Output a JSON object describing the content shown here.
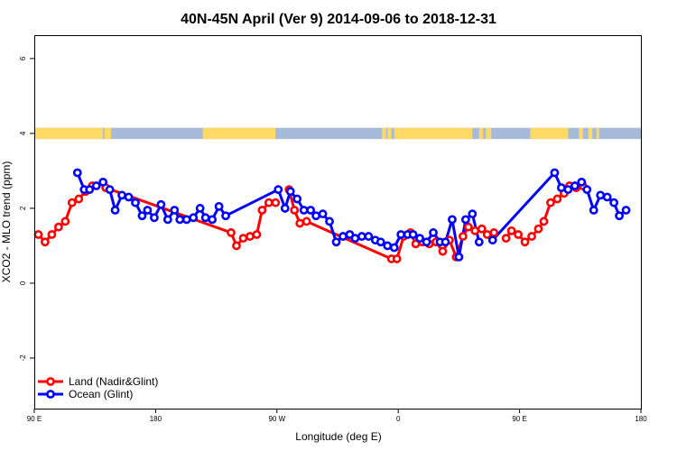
{
  "chart_data": {
    "type": "line",
    "title": "40N-45N April (Ver 9)   2014-09-06 to 2018-12-31",
    "xlabel": "Longitude (deg E)",
    "ylabel": "XCO2 - MLO trend (ppm)",
    "xlim": [
      90,
      540
    ],
    "ylim": [
      -3.35,
      6.6
    ],
    "x_ticks": [
      {
        "value": 90,
        "label": "90 E"
      },
      {
        "value": 180,
        "label": "180"
      },
      {
        "value": 270,
        "label": "90 W"
      },
      {
        "value": 360,
        "label": "0"
      },
      {
        "value": 450,
        "label": "90 E"
      },
      {
        "value": 540,
        "label": "180"
      }
    ],
    "y_ticks": [
      {
        "value": -2,
        "label": "-2"
      },
      {
        "value": 0,
        "label": "0"
      },
      {
        "value": 2,
        "label": "2"
      },
      {
        "value": 4,
        "label": "4"
      },
      {
        "value": 6,
        "label": "6"
      }
    ],
    "grid": false,
    "legend_position": "bottom-left",
    "land_ocean_strip": {
      "y_range": [
        3.85,
        4.15
      ],
      "land_color": "#ffd966",
      "ocean_color": "#a5bbd9",
      "land_segments": [
        [
          90,
          141
        ],
        [
          142,
          145
        ],
        [
          144,
          147
        ],
        [
          215,
          269
        ],
        [
          348,
          351
        ],
        [
          352,
          355
        ],
        [
          357,
          415
        ],
        [
          420,
          423
        ],
        [
          425,
          429
        ],
        [
          458,
          486
        ],
        [
          494,
          497
        ],
        [
          501,
          504
        ],
        [
          507,
          509
        ]
      ]
    },
    "series": [
      {
        "name": "Land (Nadir&Glint)",
        "color": "#ff0000",
        "points": [
          [
            93,
            1.3
          ],
          [
            98,
            1.1
          ],
          [
            103,
            1.3
          ],
          [
            108,
            1.5
          ],
          [
            113,
            1.65
          ],
          [
            118,
            2.15
          ],
          [
            123,
            2.25
          ],
          [
            128,
            2.45
          ],
          [
            133,
            2.6
          ],
          [
            138,
            null
          ],
          [
            143,
            2.55
          ],
          [
            236,
            1.35
          ],
          [
            240,
            1.0
          ],
          [
            245,
            1.2
          ],
          [
            250,
            1.25
          ],
          [
            255,
            1.3
          ],
          [
            259,
            1.95
          ],
          [
            264,
            2.15
          ],
          [
            269,
            2.15
          ],
          [
            274,
            null
          ],
          [
            279,
            2.5
          ],
          [
            283,
            1.95
          ],
          [
            287,
            1.6
          ],
          [
            292,
            1.65
          ],
          [
            355,
            0.65
          ],
          [
            359,
            0.65
          ],
          [
            364,
            1.25
          ],
          [
            369,
            1.35
          ],
          [
            373,
            1.05
          ],
          [
            378,
            1.1
          ],
          [
            383,
            1.05
          ],
          [
            388,
            1.1
          ],
          [
            393,
            0.85
          ],
          [
            398,
            1.15
          ],
          [
            403,
            0.7
          ],
          [
            408,
            1.25
          ],
          [
            412,
            1.5
          ],
          [
            417,
            1.4
          ],
          [
            422,
            1.45
          ],
          [
            426,
            1.3
          ],
          [
            431,
            1.35
          ],
          [
            436,
            null
          ],
          [
            440,
            1.2
          ],
          [
            444,
            1.4
          ],
          [
            449,
            1.3
          ],
          [
            454,
            1.1
          ],
          [
            459,
            1.25
          ],
          [
            464,
            1.45
          ],
          [
            468,
            1.65
          ],
          [
            473,
            2.15
          ],
          [
            478,
            2.25
          ],
          [
            483,
            2.4
          ],
          [
            487,
            2.6
          ],
          [
            492,
            2.55
          ],
          [
            497,
            2.6
          ]
        ]
      },
      {
        "name": "Ocean (Glint)",
        "color": "#0000ff",
        "points": [
          [
            122,
            2.95
          ],
          [
            127,
            2.5
          ],
          [
            131,
            2.5
          ],
          [
            136,
            2.6
          ],
          [
            141,
            2.7
          ],
          [
            146,
            2.5
          ],
          [
            150,
            1.95
          ],
          [
            155,
            2.35
          ],
          [
            160,
            2.3
          ],
          [
            165,
            2.15
          ],
          [
            170,
            1.8
          ],
          [
            174,
            1.95
          ],
          [
            179,
            1.75
          ],
          [
            184,
            2.1
          ],
          [
            189,
            1.7
          ],
          [
            194,
            1.95
          ],
          [
            198,
            1.7
          ],
          [
            203,
            1.7
          ],
          [
            208,
            1.75
          ],
          [
            213,
            2.0
          ],
          [
            217,
            1.75
          ],
          [
            222,
            1.7
          ],
          [
            227,
            2.05
          ],
          [
            232,
            1.8
          ],
          [
            271,
            2.5
          ],
          [
            276,
            2.0
          ],
          [
            280,
            2.45
          ],
          [
            285,
            2.25
          ],
          [
            290,
            1.95
          ],
          [
            295,
            1.95
          ],
          [
            299,
            1.8
          ],
          [
            304,
            1.85
          ],
          [
            309,
            1.65
          ],
          [
            314,
            1.1
          ],
          [
            319,
            1.25
          ],
          [
            324,
            1.3
          ],
          [
            328,
            1.2
          ],
          [
            333,
            1.25
          ],
          [
            338,
            1.25
          ],
          [
            343,
            1.15
          ],
          [
            347,
            1.1
          ],
          [
            352,
            1.0
          ],
          [
            357,
            0.95
          ],
          [
            362,
            1.3
          ],
          [
            367,
            1.3
          ],
          [
            371,
            1.3
          ],
          [
            376,
            1.2
          ],
          [
            381,
            1.1
          ],
          [
            386,
            1.35
          ],
          [
            391,
            1.1
          ],
          [
            395,
            1.1
          ],
          [
            400,
            1.7
          ],
          [
            405,
            0.7
          ],
          [
            410,
            1.7
          ],
          [
            415,
            1.85
          ],
          [
            420,
            1.1
          ],
          [
            425,
            null
          ],
          [
            430,
            1.15
          ],
          [
            476,
            2.95
          ],
          [
            481,
            2.55
          ],
          [
            486,
            2.5
          ],
          [
            491,
            2.6
          ],
          [
            496,
            2.7
          ],
          [
            500,
            2.5
          ],
          [
            505,
            1.95
          ],
          [
            510,
            2.35
          ],
          [
            515,
            2.3
          ],
          [
            520,
            2.15
          ],
          [
            524,
            1.8
          ],
          [
            529,
            1.95
          ]
        ]
      }
    ]
  }
}
